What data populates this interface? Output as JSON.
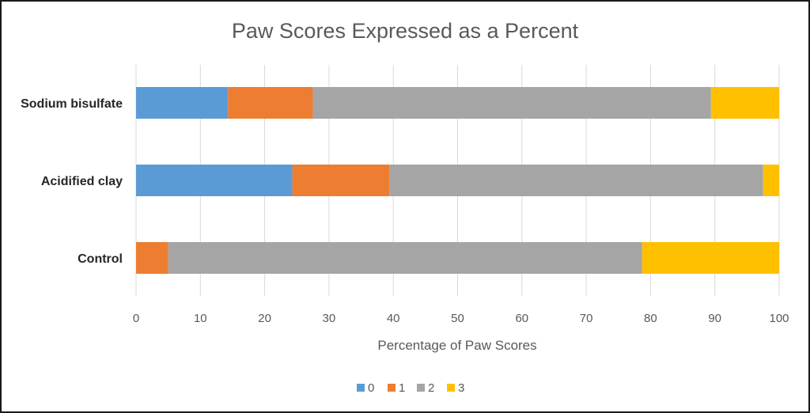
{
  "chart_data": {
    "type": "bar",
    "orientation": "horizontal",
    "stacked": true,
    "title": "Paw Scores Expressed as a Percent",
    "xlabel": "Percentage of Paw Scores",
    "ylabel": "",
    "xlim": [
      0,
      100
    ],
    "xticks": [
      "0",
      "10",
      "20",
      "30",
      "40",
      "50",
      "60",
      "70",
      "80",
      "90",
      "100"
    ],
    "grid": true,
    "legend_position": "bottom",
    "categories": [
      "Sodium bisulfate",
      "Acidified clay",
      "Control"
    ],
    "series": [
      {
        "name": "0",
        "color": "#5b9bd5",
        "values": [
          14.3,
          24.3,
          0
        ]
      },
      {
        "name": "1",
        "color": "#ed7d31",
        "values": [
          13.2,
          15.1,
          5.0
        ]
      },
      {
        "name": "2",
        "color": "#a5a5a5",
        "values": [
          61.9,
          58.1,
          73.7
        ]
      },
      {
        "name": "3",
        "color": "#ffc000",
        "values": [
          10.6,
          2.5,
          21.3
        ]
      }
    ]
  }
}
